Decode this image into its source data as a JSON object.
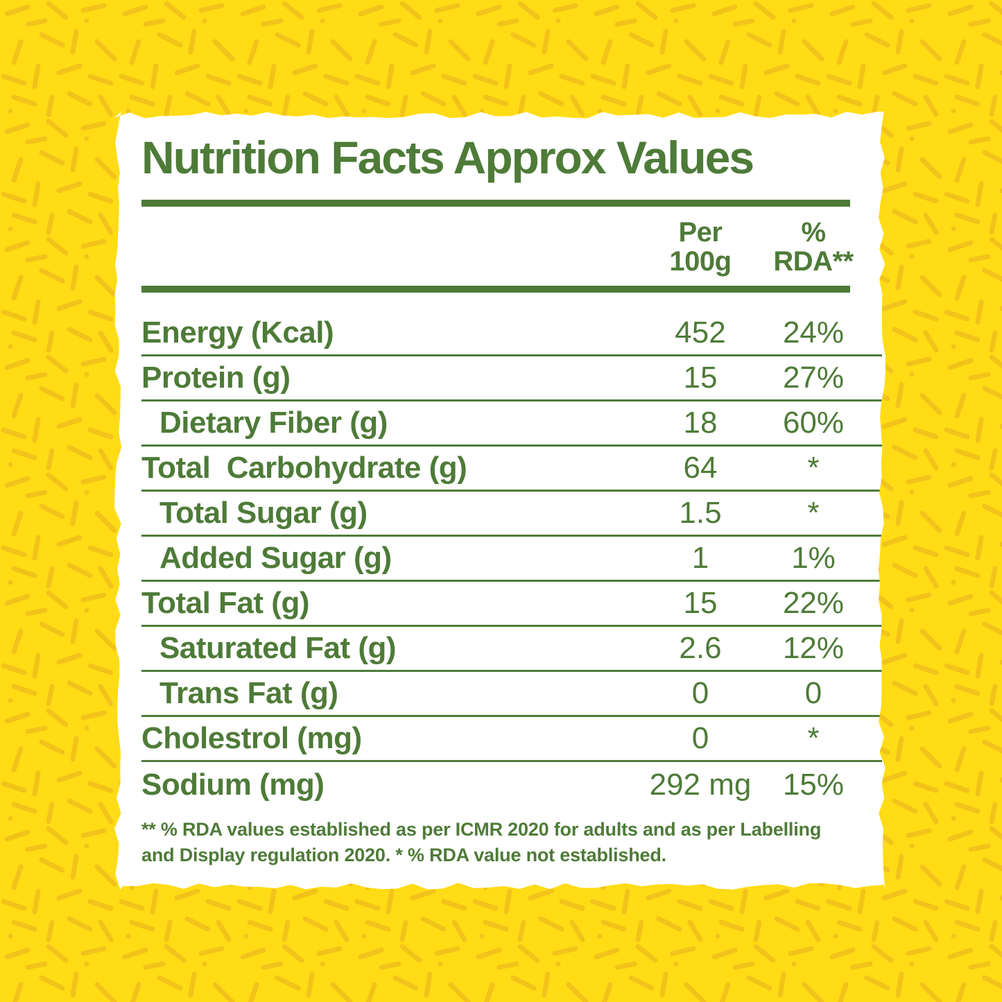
{
  "colors": {
    "background": "#FFDC15",
    "confetti": "#F2C31A",
    "green": "#4E7B38",
    "card": "#FFFFFF"
  },
  "title": "Nutrition Facts Approx Values",
  "table": {
    "header": {
      "per_label": "Per\n100g",
      "rda_label": "%\nRDA**"
    },
    "rows": [
      {
        "label": "Energy (Kcal)",
        "indent": false,
        "per100g": "452",
        "rda": "24%"
      },
      {
        "label": "Protein (g)",
        "indent": false,
        "per100g": "15",
        "rda": "27%"
      },
      {
        "label": "Dietary Fiber (g)",
        "indent": true,
        "per100g": "18",
        "rda": "60%"
      },
      {
        "label": "Total  Carbohydrate (g)",
        "indent": false,
        "per100g": "64",
        "rda": "*"
      },
      {
        "label": "Total Sugar (g)",
        "indent": true,
        "per100g": "1.5",
        "rda": "*"
      },
      {
        "label": "Added Sugar (g)",
        "indent": true,
        "per100g": "1",
        "rda": "1%"
      },
      {
        "label": "Total Fat (g)",
        "indent": false,
        "per100g": "15",
        "rda": "22%"
      },
      {
        "label": "Saturated Fat (g)",
        "indent": true,
        "per100g": "2.6",
        "rda": "12%"
      },
      {
        "label": "Trans Fat (g)",
        "indent": true,
        "per100g": "0",
        "rda": "0"
      },
      {
        "label": "Cholestrol (mg)",
        "indent": false,
        "per100g": "0",
        "rda": "*"
      },
      {
        "label": "Sodium (mg)",
        "indent": false,
        "per100g": "292 mg",
        "rda": "15%"
      }
    ]
  },
  "footnote": "** % RDA values established as per ICMR 2020 for adults and as per Labelling and Display regulation 2020. * % RDA value not established."
}
